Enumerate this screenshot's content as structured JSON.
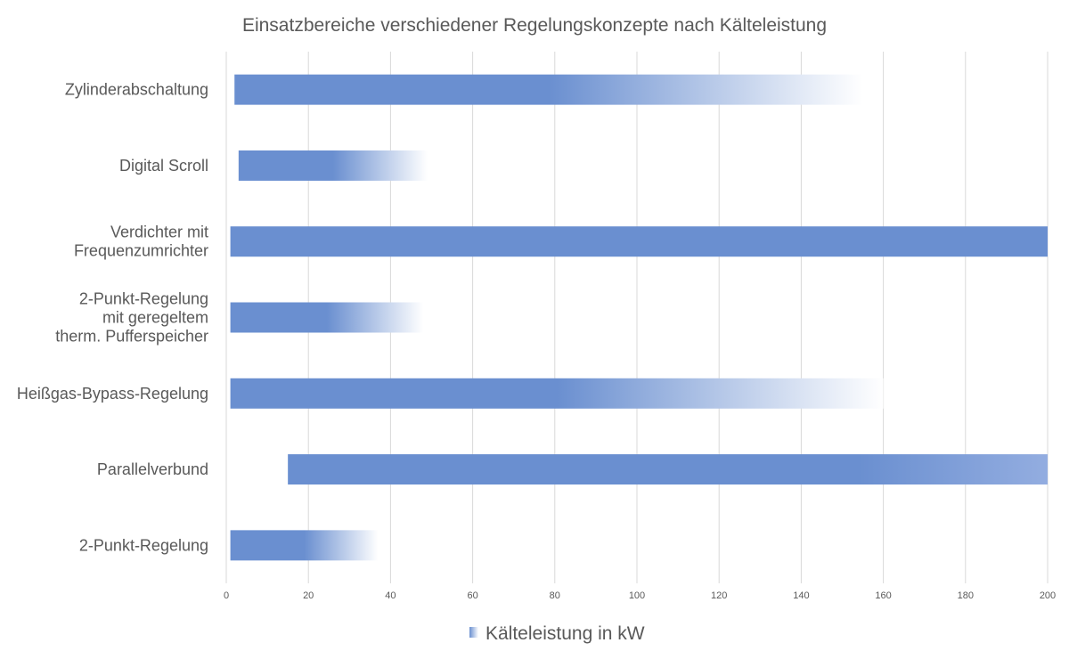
{
  "chart_data": {
    "type": "bar",
    "orientation": "horizontal",
    "title": "Einsatzbereiche verschiedener Regelungskonzepte nach Kälteleistung",
    "xlabel": "",
    "ylabel": "",
    "xlim": [
      0,
      200
    ],
    "xticks": [
      0,
      20,
      40,
      60,
      80,
      100,
      120,
      140,
      160,
      180,
      200
    ],
    "grid": true,
    "legend": {
      "placement": "bottom",
      "entries": [
        "Kälteleistung in kW"
      ]
    },
    "bar_color": "#6a8fd0",
    "categories": [
      [
        "Zylinderabschaltung"
      ],
      [
        "Digital Scroll"
      ],
      [
        "Verdichter mit",
        "Frequenzumrichter"
      ],
      [
        "2-Punkt-Regelung",
        "mit geregeltem",
        "therm. Pufferspeicher"
      ],
      [
        "Heißgas-Bypass-Regelung"
      ],
      [
        "Parallelverbund"
      ],
      [
        "2-Punkt-Regelung"
      ]
    ],
    "ranges": [
      [
        2,
        155
      ],
      [
        3,
        49
      ],
      [
        1,
        200
      ],
      [
        1,
        48
      ],
      [
        1,
        160
      ],
      [
        15,
        200
      ],
      [
        1,
        37
      ]
    ]
  }
}
